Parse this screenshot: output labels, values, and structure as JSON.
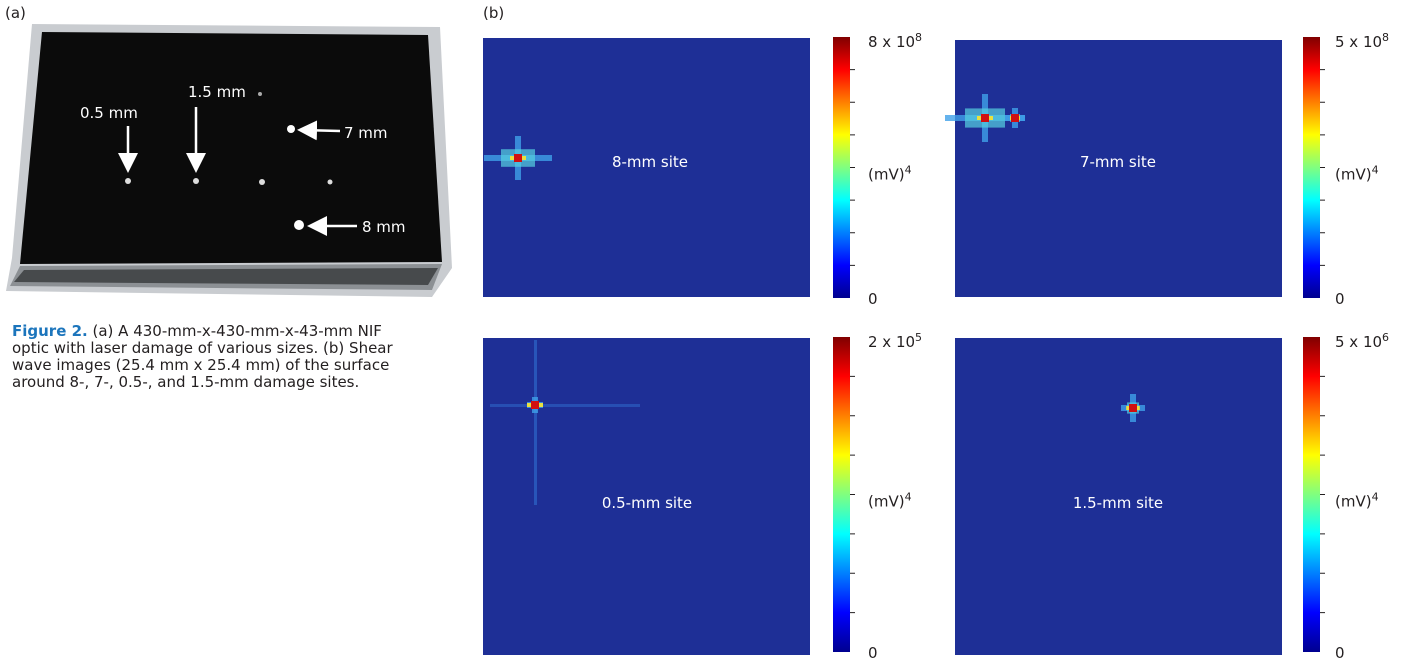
{
  "panel_a": {
    "label": "(a)",
    "annotations": [
      "0.5 mm",
      "1.5 mm",
      "7 mm",
      "8 mm"
    ]
  },
  "caption": {
    "lead": "Figure 2.",
    "lines": [
      "(a) A 430-mm-x-430-mm-x-43-mm NIF",
      "optic with laser damage of various sizes. (b) Shear",
      "wave images (25.4 mm x 25.4 mm) of the surface",
      "around 8-, 7-, 0.5-, and 1.5-mm damage sites."
    ]
  },
  "panel_b": {
    "label": "(b)",
    "images": [
      {
        "site": "8-mm site",
        "max": {
          "base": "8 x 10",
          "exp": "8"
        },
        "unit": {
          "base": "(mV)",
          "exp": "4"
        },
        "min": "0"
      },
      {
        "site": "7-mm site",
        "max": {
          "base": "5 x 10",
          "exp": "8"
        },
        "unit": {
          "base": "(mV)",
          "exp": "4"
        },
        "min": "0"
      },
      {
        "site": "0.5-mm site",
        "max": {
          "base": "2 x 10",
          "exp": "5"
        },
        "unit": {
          "base": "(mV)",
          "exp": "4"
        },
        "min": "0"
      },
      {
        "site": "1.5-mm site",
        "max": {
          "base": "5 x 10",
          "exp": "6"
        },
        "unit": {
          "base": "(mV)",
          "exp": "4"
        },
        "min": "0"
      }
    ]
  }
}
